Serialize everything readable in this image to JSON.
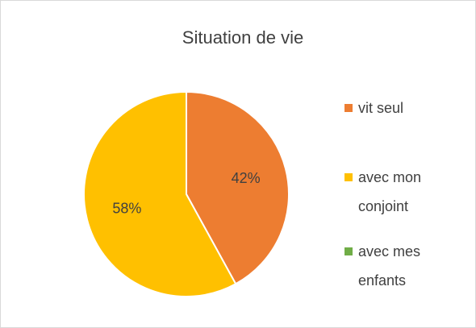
{
  "chart_data": {
    "type": "pie",
    "title": "Situation de vie",
    "categories": [
      "vit seul",
      "avec mon conjoint",
      "avec mes enfants"
    ],
    "values": [
      42,
      58,
      0
    ],
    "value_labels": [
      "42%",
      "58%",
      null
    ],
    "colors": [
      "#ed7d31",
      "#ffc000",
      "#70ad47"
    ],
    "legend": "right"
  }
}
